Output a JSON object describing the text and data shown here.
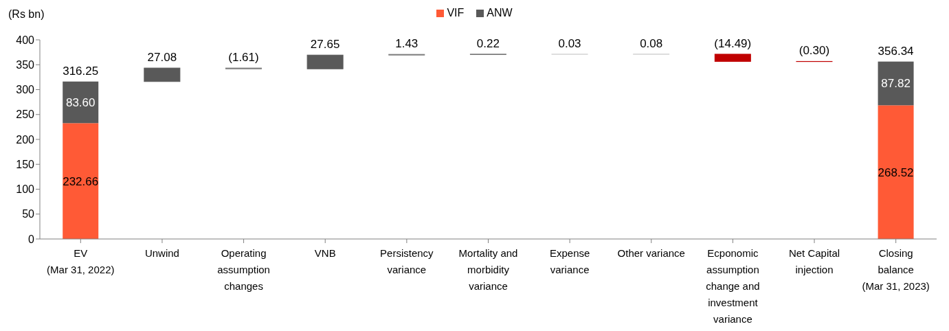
{
  "chart_data": {
    "type": "bar",
    "stacked": true,
    "ylabel": "(Rs bn)",
    "legend": "top",
    "ylim": [
      0,
      400
    ],
    "yticks": [
      0,
      50,
      100,
      150,
      200,
      250,
      300,
      350,
      400
    ],
    "categories": [
      "EV (Mar 31, 2022)",
      "Unwind",
      "Operating assumption changes",
      "VNB",
      "Persistency variance",
      "Mortality and morbidity variance",
      "Expense variance",
      "Other variance",
      "Ecponomic assumption change and investment variance",
      "Net Capital injection",
      "Closing balance (Mar 31, 2023)"
    ],
    "series": [
      {
        "name": "VIF",
        "color": "#ff5a36",
        "values": [
          232.66,
          null,
          null,
          null,
          null,
          null,
          null,
          null,
          null,
          null,
          268.52
        ],
        "value_labels": [
          "232.66",
          null,
          null,
          null,
          null,
          null,
          null,
          null,
          null,
          null,
          "268.52"
        ]
      },
      {
        "name": "ANW",
        "color": "#595959",
        "values": [
          83.6,
          null,
          null,
          null,
          null,
          null,
          null,
          null,
          null,
          null,
          87.82
        ],
        "value_labels": [
          "83.60",
          null,
          null,
          null,
          null,
          null,
          null,
          null,
          null,
          null,
          "87.82"
        ]
      },
      {
        "colors": [
          null,
          "#595959",
          "#7f7f7f",
          "#595959",
          "#7f7f7f",
          "#404040",
          "#bfbfbf",
          "#bfbfbf",
          "#c00000",
          "#c00000",
          null
        ],
        "values": [
          null,
          27.08,
          -1.61,
          27.65,
          1.43,
          0.22,
          0.03,
          0.08,
          -14.49,
          -0.3,
          null
        ],
        "base": [
          null,
          316.25,
          343.33,
          341.72,
          369.37,
          370.8,
          371.02,
          371.05,
          371.13,
          356.64,
          null
        ],
        "value_labels": [
          null,
          "27.08",
          "(1.61)",
          "27.65",
          "1.43",
          "0.22",
          "0.03",
          "0.08",
          "(14.49)",
          "(0.30)",
          null
        ]
      }
    ],
    "totals": [
      "316.25",
      null,
      null,
      null,
      null,
      null,
      null,
      null,
      null,
      null,
      "356.34"
    ]
  }
}
